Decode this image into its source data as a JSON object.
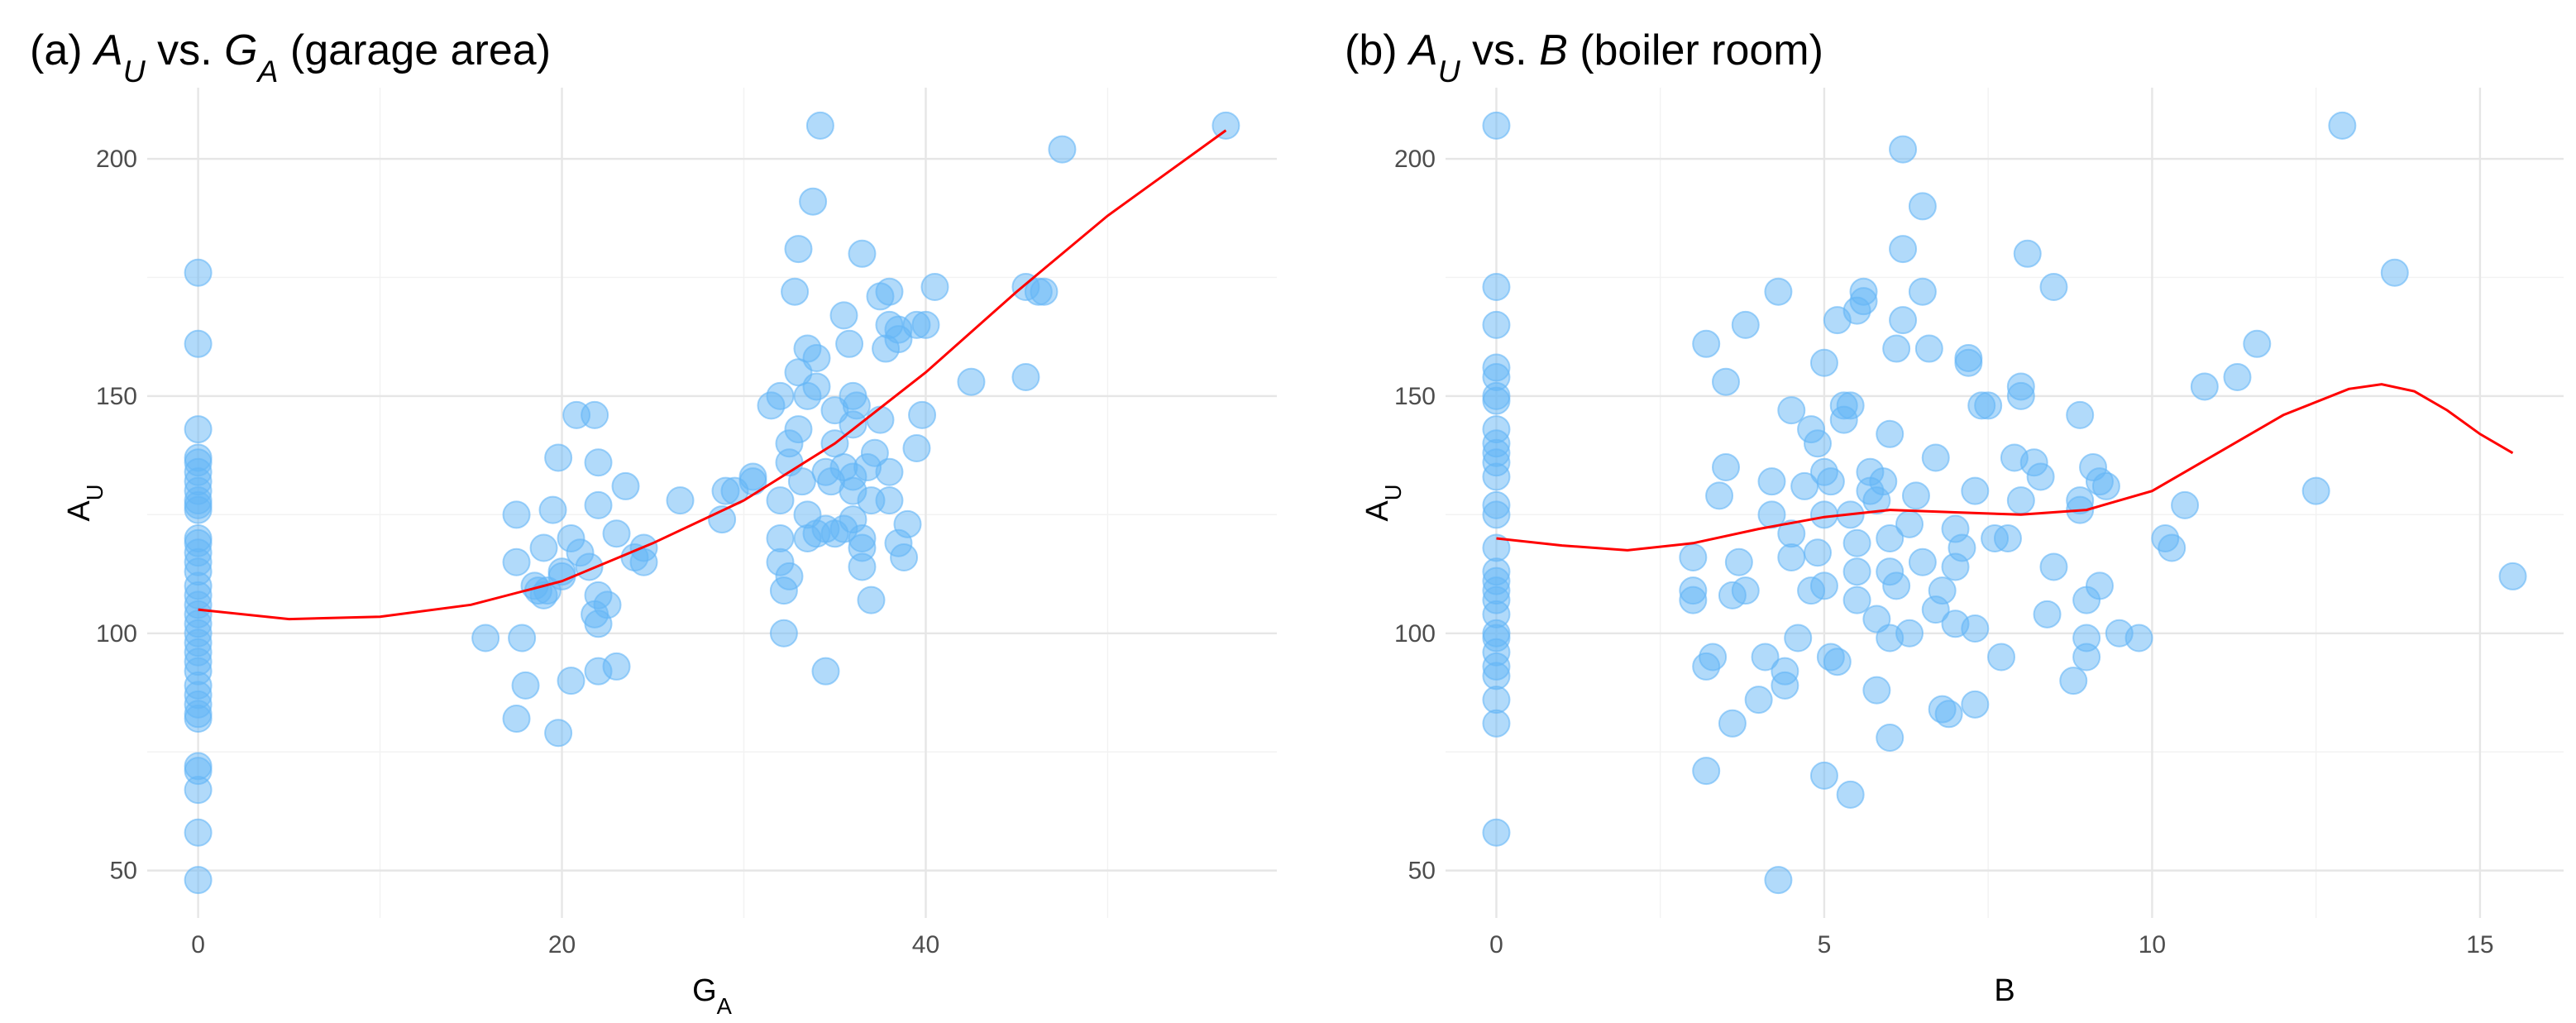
{
  "chart_data": [
    {
      "type": "scatter",
      "title": [
        {
          "text": "(a) ",
          "style": "plain"
        },
        {
          "text": "A",
          "style": "italic"
        },
        {
          "text": "U",
          "style": "italic-sub"
        },
        {
          "text": " vs. ",
          "style": "plain"
        },
        {
          "text": "G",
          "style": "italic"
        },
        {
          "text": "A",
          "style": "italic-sub"
        },
        {
          "text": " (garage area)",
          "style": "plain"
        }
      ],
      "x_label": [
        {
          "text": "G",
          "style": "plain"
        },
        {
          "text": "A",
          "style": "sub"
        }
      ],
      "y_label": [
        {
          "text": "A",
          "style": "plain"
        },
        {
          "text": "U",
          "style": "sub"
        }
      ],
      "xlim": [
        -2.8,
        59.3
      ],
      "ylim": [
        40,
        215
      ],
      "xticks": [
        0,
        20,
        40
      ],
      "yticks": [
        50,
        100,
        150,
        200
      ],
      "x_minor_grid": [
        10,
        30,
        50
      ],
      "y_minor_grid": [
        75,
        125,
        175
      ],
      "grid": true,
      "points": {
        "color": "#64b5f6",
        "x": [
          0,
          0,
          0,
          0,
          0,
          0,
          0,
          0,
          0,
          0,
          0,
          0,
          0,
          0,
          0,
          0,
          0,
          0,
          0,
          0,
          0,
          0,
          0,
          0,
          0,
          0,
          0,
          0,
          0,
          0,
          0,
          0,
          0,
          0,
          0,
          0,
          15.8,
          17.5,
          17.5,
          17.8,
          18,
          17.5,
          18.5,
          19,
          19,
          19.5,
          19.8,
          20,
          20,
          19.8,
          20.5,
          20.5,
          20.8,
          21,
          21.5,
          21.8,
          21.8,
          22,
          22,
          22,
          22,
          22.5,
          22,
          23,
          23,
          23.5,
          24,
          24.5,
          24.5,
          26.5,
          19.2,
          18.7,
          28.8,
          29,
          29.5,
          30.5,
          30.5,
          31.5,
          32,
          32,
          32,
          32,
          32.2,
          32.2,
          32.5,
          32.5,
          32.8,
          33,
          33,
          33,
          33.5,
          33.5,
          33.5,
          33.5,
          33.8,
          34,
          34,
          34.2,
          34.5,
          34.5,
          34.5,
          34.8,
          35,
          35,
          35.5,
          35,
          35.5,
          35.5,
          35.8,
          36,
          36,
          36,
          36,
          36.2,
          36.5,
          36.5,
          36.5,
          36.5,
          36.8,
          37,
          37,
          37.2,
          37.5,
          37.5,
          37.8,
          38,
          38,
          38,
          38,
          38.5,
          38.5,
          38.8,
          38.5,
          39,
          39.5,
          39.5,
          39.8,
          40,
          40.5,
          42.5,
          45.5,
          45.5,
          46.2,
          46.5,
          47.5,
          56.5,
          34,
          32.5,
          33.2,
          36
        ],
        "y": [
          176,
          161,
          143,
          137,
          136,
          134,
          132,
          130,
          128,
          127,
          126,
          120,
          119,
          117,
          115,
          113,
          110,
          108,
          106,
          104,
          102,
          100,
          98,
          96,
          94,
          92,
          89,
          87,
          85,
          83,
          82,
          72,
          71,
          67,
          58,
          48,
          99,
          125,
          115,
          99,
          89,
          82,
          110,
          108,
          118,
          126,
          137,
          112,
          113,
          79,
          120,
          90,
          146,
          117,
          114,
          104,
          146,
          136,
          127,
          102,
          108,
          106,
          92,
          93,
          121,
          131,
          116,
          118,
          115,
          128,
          109,
          109,
          124,
          130,
          130,
          133,
          132,
          148,
          150,
          128,
          120,
          115,
          109,
          100,
          112,
          140,
          172,
          181,
          155,
          143,
          160,
          150,
          125,
          120,
          191,
          158,
          152,
          207,
          122,
          92,
          134,
          132,
          140,
          147,
          135,
          121,
          122,
          167,
          161,
          124,
          133,
          130,
          150,
          148,
          180,
          120,
          118,
          114,
          135,
          107,
          128,
          138,
          171,
          145,
          160,
          172,
          165,
          134,
          128,
          119,
          162,
          116,
          164,
          123,
          165,
          139,
          146,
          165,
          173,
          153,
          173,
          154,
          172,
          172,
          202,
          207,
          121,
          136,
          132,
          144
        ]
      },
      "smooth": {
        "color": "#ff0000",
        "x": [
          0,
          5,
          10,
          15,
          20,
          25,
          30,
          35,
          40,
          45,
          50,
          56.5
        ],
        "y": [
          105,
          103,
          103.5,
          106,
          111,
          119,
          128,
          140,
          155,
          172,
          188,
          206
        ]
      }
    },
    {
      "type": "scatter",
      "title": [
        {
          "text": "(b) ",
          "style": "plain"
        },
        {
          "text": "A",
          "style": "italic"
        },
        {
          "text": "U",
          "style": "italic-sub"
        },
        {
          "text": " vs. ",
          "style": "plain"
        },
        {
          "text": "B",
          "style": "italic"
        },
        {
          "text": " (boiler room)",
          "style": "plain"
        }
      ],
      "x_label": [
        {
          "text": "B",
          "style": "plain"
        }
      ],
      "y_label": [
        {
          "text": "A",
          "style": "plain"
        },
        {
          "text": "U",
          "style": "sub"
        }
      ],
      "xlim": [
        -0.775,
        16.275
      ],
      "ylim": [
        40,
        215
      ],
      "xticks": [
        0,
        5,
        10,
        15
      ],
      "yticks": [
        50,
        100,
        150,
        200
      ],
      "x_minor_grid": [
        2.5,
        7.5,
        12.5
      ],
      "y_minor_grid": [
        75,
        125,
        175
      ],
      "grid": true,
      "points": {
        "color": "#64b5f6",
        "x": [
          0,
          0,
          0,
          0,
          0,
          0,
          0,
          0,
          0,
          0,
          0,
          0,
          0,
          0,
          0,
          0,
          0,
          0,
          0,
          0,
          0,
          0,
          0,
          0,
          0,
          0,
          0,
          0,
          3.2,
          3.5,
          3.8,
          3,
          3,
          3,
          3.2,
          3.3,
          3.2,
          3.5,
          3.4,
          3.6,
          3.7,
          3.8,
          3.6,
          4,
          4.1,
          4.2,
          4.2,
          4.3,
          4.3,
          4.4,
          4.4,
          4.5,
          4.5,
          4.5,
          4.6,
          4.7,
          4.8,
          4.8,
          4.9,
          4.9,
          5,
          5,
          5,
          5,
          5,
          5.1,
          5.2,
          5.1,
          5.2,
          5.3,
          5.3,
          5.4,
          5.4,
          5.5,
          5.5,
          5.5,
          5.5,
          5.6,
          5.6,
          5.7,
          5.7,
          5.8,
          5.8,
          5.8,
          5.9,
          6,
          6,
          6,
          6,
          6.1,
          6.1,
          6.2,
          6.2,
          6.2,
          6.3,
          6.3,
          6.4,
          6.5,
          6.5,
          6.5,
          6.6,
          6.7,
          6.7,
          6.8,
          6.8,
          6.9,
          7,
          7,
          7,
          7.1,
          7.2,
          7.2,
          7.3,
          7.3,
          7.3,
          7.4,
          7.5,
          7.6,
          7.7,
          7.8,
          7.9,
          8,
          8,
          8,
          8.1,
          8.2,
          8.3,
          8.4,
          8.5,
          8.5,
          8.8,
          8.9,
          8.9,
          9,
          9,
          9,
          9.1,
          9.2,
          9.2,
          9.3,
          9.5,
          9.8,
          10.2,
          10.3,
          10.5,
          10.8,
          11.3,
          11.6,
          12.5,
          12.9,
          13.7,
          15.5,
          8.9,
          6,
          5.4
        ],
        "y": [
          207,
          173,
          165,
          156,
          154,
          150,
          149,
          143,
          140,
          138,
          136,
          133,
          127,
          125,
          118,
          113,
          111,
          109,
          107,
          104,
          100,
          99,
          96,
          93,
          91,
          86,
          81,
          58,
          161,
          153,
          165,
          116,
          109,
          107,
          93,
          95,
          71,
          135,
          129,
          108,
          115,
          109,
          81,
          86,
          95,
          125,
          132,
          172,
          48,
          92,
          89,
          147,
          121,
          116,
          99,
          131,
          143,
          109,
          117,
          140,
          157,
          134,
          110,
          125,
          70,
          95,
          94,
          132,
          166,
          148,
          145,
          148,
          125,
          119,
          113,
          107,
          168,
          172,
          170,
          134,
          130,
          128,
          103,
          88,
          132,
          142,
          120,
          113,
          99,
          110,
          160,
          181,
          202,
          166,
          123,
          100,
          129,
          172,
          115,
          190,
          160,
          105,
          137,
          84,
          109,
          83,
          122,
          114,
          102,
          118,
          158,
          157,
          130,
          101,
          85,
          148,
          148,
          120,
          95,
          120,
          137,
          128,
          150,
          152,
          180,
          136,
          133,
          104,
          173,
          114,
          90,
          146,
          126,
          99,
          107,
          95,
          135,
          132,
          110,
          131,
          100,
          99,
          120,
          118,
          127,
          152,
          154,
          161,
          130,
          207,
          176,
          112,
          128,
          78,
          66
        ]
      },
      "smooth": {
        "color": "#ff0000",
        "x": [
          0,
          1,
          2,
          3,
          4,
          5,
          6,
          7,
          8,
          9,
          10,
          11,
          12,
          13,
          13.5,
          14,
          14.5,
          15,
          15.5
        ],
        "y": [
          120,
          118.5,
          117.5,
          119,
          122,
          124.5,
          126,
          125.5,
          125,
          126,
          130,
          138,
          146,
          151.5,
          152.5,
          151,
          147,
          142,
          138
        ]
      }
    }
  ]
}
